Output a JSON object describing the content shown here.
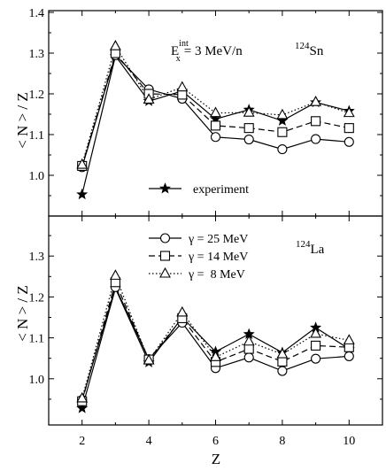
{
  "chart_data": [
    {
      "type": "line",
      "panel": "top",
      "xlabel": "",
      "ylabel": "< N > / Z",
      "xlim": [
        1,
        11
      ],
      "ylim": [
        0.9,
        1.4
      ],
      "x_ticks": [
        "2",
        "4",
        "6",
        "8",
        "10"
      ],
      "y_ticks": [
        "1.0",
        "1.1",
        "1.2",
        "1.3",
        "1.4"
      ],
      "annotation_energy": {
        "base": "E",
        "sup": "int",
        "sub": "x",
        "rest": "= 3 MeV/n"
      },
      "annotation_nucleus": {
        "mass": "124",
        "symbol": "Sn"
      },
      "legend": [
        {
          "label": "experiment",
          "marker": "star",
          "dash": "solid"
        }
      ],
      "x": [
        2,
        3,
        4,
        5,
        6,
        7,
        8,
        9,
        10
      ],
      "series": [
        {
          "marker": "star",
          "dash": "solid",
          "values": [
            0.953,
            1.293,
            1.182,
            1.207,
            1.138,
            1.161,
            1.134,
            1.179,
            1.158
          ]
        },
        {
          "name": "γ = 25 MeV",
          "marker": "circle",
          "dash": "solid",
          "values": [
            1.02,
            1.295,
            1.211,
            1.188,
            1.094,
            1.088,
            1.064,
            1.089,
            1.082
          ]
        },
        {
          "name": "γ = 14 MeV",
          "marker": "square",
          "dash": "dashed",
          "values": [
            1.023,
            1.3,
            1.2,
            1.198,
            1.122,
            1.116,
            1.106,
            1.133,
            1.116
          ]
        },
        {
          "name": "γ =  8 MeV",
          "marker": "triangle",
          "dash": "dotted",
          "values": [
            1.026,
            1.317,
            1.186,
            1.216,
            1.153,
            1.154,
            1.148,
            1.18,
            1.153
          ]
        }
      ]
    },
    {
      "type": "line",
      "panel": "bottom",
      "xlabel": "Z",
      "ylabel": "< N > / Z",
      "xlim": [
        1,
        11
      ],
      "ylim": [
        0.9,
        1.4
      ],
      "x_ticks": [
        "2",
        "4",
        "6",
        "8",
        "10"
      ],
      "y_ticks": [
        "1.0",
        "1.1",
        "1.2",
        "1.3"
      ],
      "annotation_nucleus": {
        "mass": "124",
        "symbol": "La"
      },
      "legend": [
        {
          "label": "γ = 25 MeV",
          "marker": "circle",
          "dash": "solid"
        },
        {
          "label": "γ = 14 MeV",
          "marker": "square",
          "dash": "dashed"
        },
        {
          "label": "γ =  8 MeV",
          "marker": "triangle",
          "dash": "dotted"
        }
      ],
      "x": [
        2,
        3,
        4,
        5,
        6,
        7,
        8,
        9,
        10
      ],
      "series": [
        {
          "marker": "star",
          "dash": "solid",
          "values": [
            0.928,
            1.221,
            1.04,
            1.15,
            1.066,
            1.109,
            1.064,
            1.125,
            1.073
          ]
        },
        {
          "name": "γ = 25 MeV",
          "marker": "circle",
          "dash": "solid",
          "values": [
            0.948,
            1.224,
            1.048,
            1.137,
            1.026,
            1.052,
            1.019,
            1.049,
            1.055
          ]
        },
        {
          "name": "γ = 14 MeV",
          "marker": "square",
          "dash": "dashed",
          "values": [
            0.945,
            1.236,
            1.047,
            1.148,
            1.041,
            1.073,
            1.042,
            1.081,
            1.077
          ]
        },
        {
          "name": "γ =  8 MeV",
          "marker": "triangle",
          "dash": "dotted",
          "values": [
            0.952,
            1.252,
            1.045,
            1.162,
            1.053,
            1.091,
            1.06,
            1.11,
            1.094
          ]
        }
      ]
    }
  ]
}
